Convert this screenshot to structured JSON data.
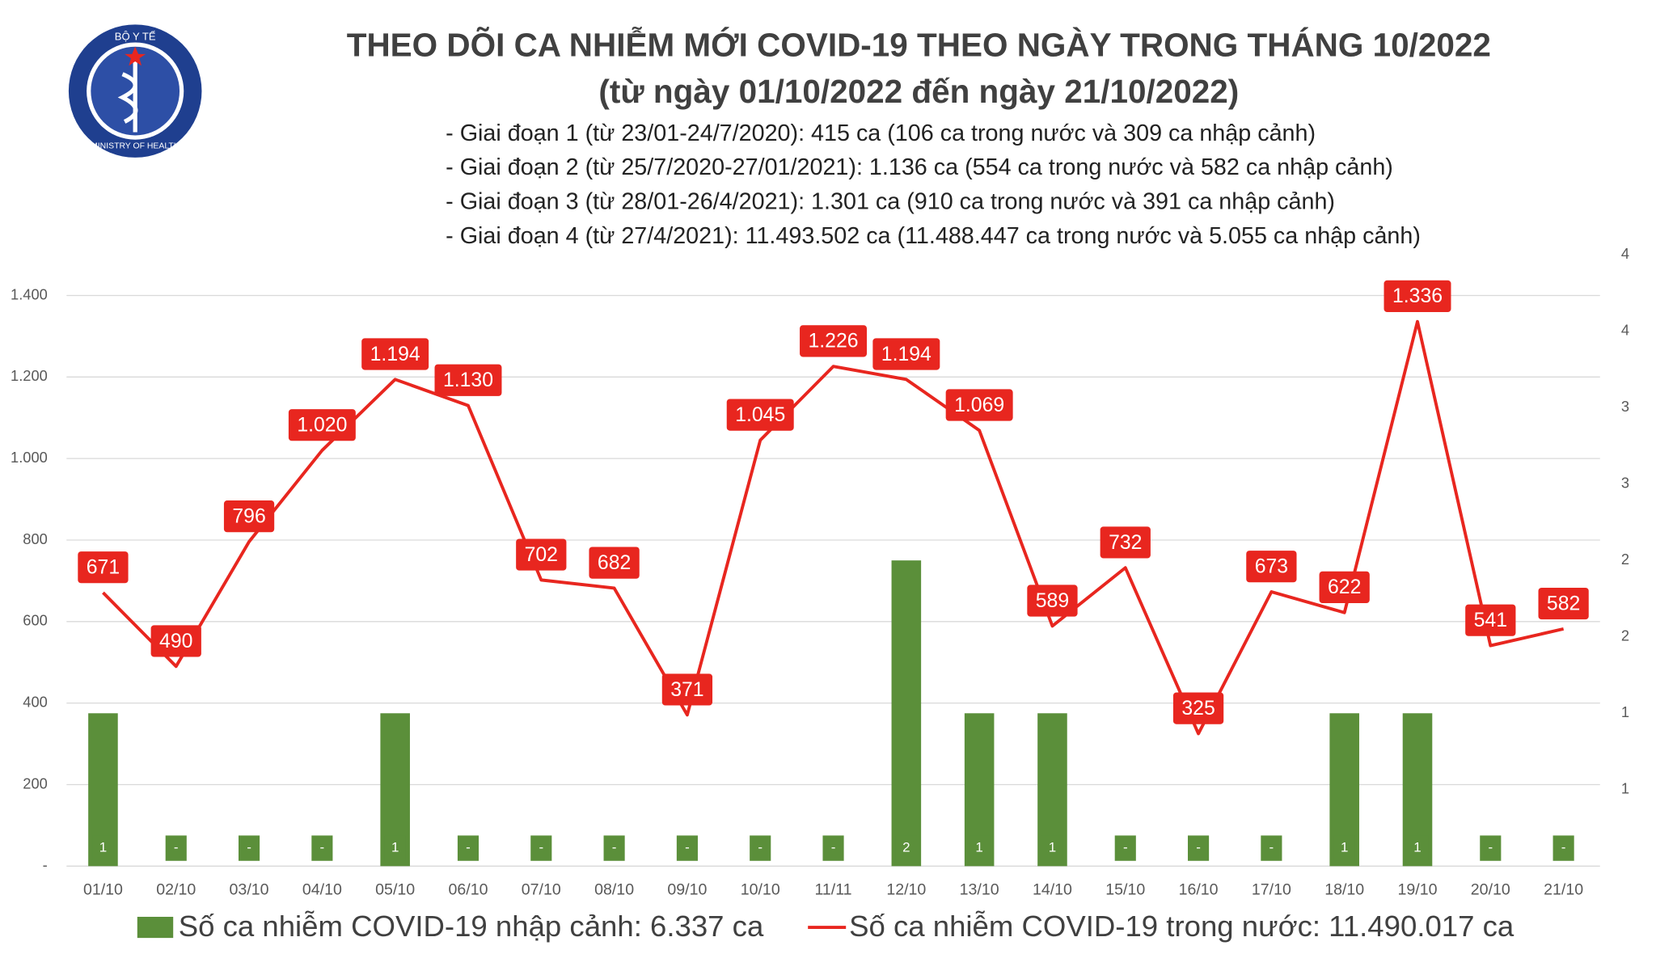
{
  "chart_data": {
    "type": "bar-line",
    "title": "THEO DÕI CA NHIỄM MỚI COVID-19 THEO NGÀY TRONG THÁNG 10/2022",
    "subtitle": "(từ ngày 01/10/2022 đến ngày 21/10/2022)",
    "notes": [
      "- Giai đoạn 1 (từ 23/01-24/7/2020): 415 ca (106 ca trong nước và 309 ca nhập cảnh)",
      "- Giai đoạn 2 (từ 25/7/2020-27/01/2021): 1.136 ca (554 ca trong nước và 582 ca nhập cảnh)",
      "- Giai đoạn 3 (từ 28/01-26/4/2021): 1.301 ca (910 ca trong nước và 391 ca nhập cảnh)",
      "- Giai đoạn 4 (từ 27/4/2021): 11.493.502 ca (11.488.447 ca trong nước và 5.055 ca nhập cảnh)"
    ],
    "logo": {
      "top": "BỘ Y TẾ",
      "bottom": "MINISTRY OF HEALTH"
    },
    "categories": [
      "01/10",
      "02/10",
      "03/10",
      "04/10",
      "05/10",
      "06/10",
      "07/10",
      "08/10",
      "09/10",
      "10/10",
      "11/11",
      "12/10",
      "13/10",
      "14/10",
      "15/10",
      "16/10",
      "17/10",
      "18/10",
      "19/10",
      "20/10",
      "21/10"
    ],
    "series": [
      {
        "name": "Số ca nhiễm COVID-19 nhập cảnh: 6.337 ca",
        "type": "bar",
        "axis": "y2",
        "color": "#5b8f3a",
        "values": [
          1,
          0,
          0,
          0,
          1,
          0,
          0,
          0,
          0,
          0,
          0,
          2,
          1,
          1,
          0,
          0,
          0,
          1,
          1,
          0,
          0
        ],
        "value_labels": [
          "1",
          "-",
          "-",
          "-",
          "1",
          "-",
          "-",
          "-",
          "-",
          "-",
          "-",
          "2",
          "1",
          "1",
          "-",
          "-",
          "-",
          "1",
          "1",
          "-",
          "-"
        ]
      },
      {
        "name": "Số ca nhiễm COVID-19 trong nước: 11.490.017 ca",
        "type": "line",
        "color": "#e8261f",
        "values": [
          671,
          490,
          796,
          1020,
          1194,
          1130,
          702,
          682,
          371,
          1045,
          1226,
          1194,
          1069,
          589,
          732,
          325,
          673,
          622,
          1336,
          541,
          582
        ],
        "value_labels": [
          "671",
          "490",
          "796",
          "1.020",
          "1.194",
          "1.130",
          "702",
          "682",
          "371",
          "1.045",
          "1.226",
          "1.194",
          "1.069",
          "589",
          "732",
          "325",
          "673",
          "622",
          "1.336",
          "541",
          "582"
        ]
      }
    ],
    "ylim": [
      0,
      1500
    ],
    "yticks": [
      {
        "value": 0,
        "label": "-"
      },
      200,
      400,
      600,
      800,
      {
        "value": 1000,
        "label": "1.000"
      },
      {
        "value": 1200,
        "label": "1.200"
      },
      {
        "value": 1400,
        "label": "1.400"
      }
    ],
    "y2lim": [
      0,
      4
    ],
    "y2ticks": [
      {
        "value": 0.5,
        "label": "1"
      },
      {
        "value": 1,
        "label": "1"
      },
      {
        "value": 1.5,
        "label": "2"
      },
      {
        "value": 2,
        "label": "2"
      },
      {
        "value": 2.5,
        "label": "3"
      },
      {
        "value": 3,
        "label": "3"
      },
      {
        "value": 3.5,
        "label": "4"
      },
      {
        "value": 4,
        "label": "4"
      }
    ],
    "grid": true,
    "legend": "bottom"
  }
}
